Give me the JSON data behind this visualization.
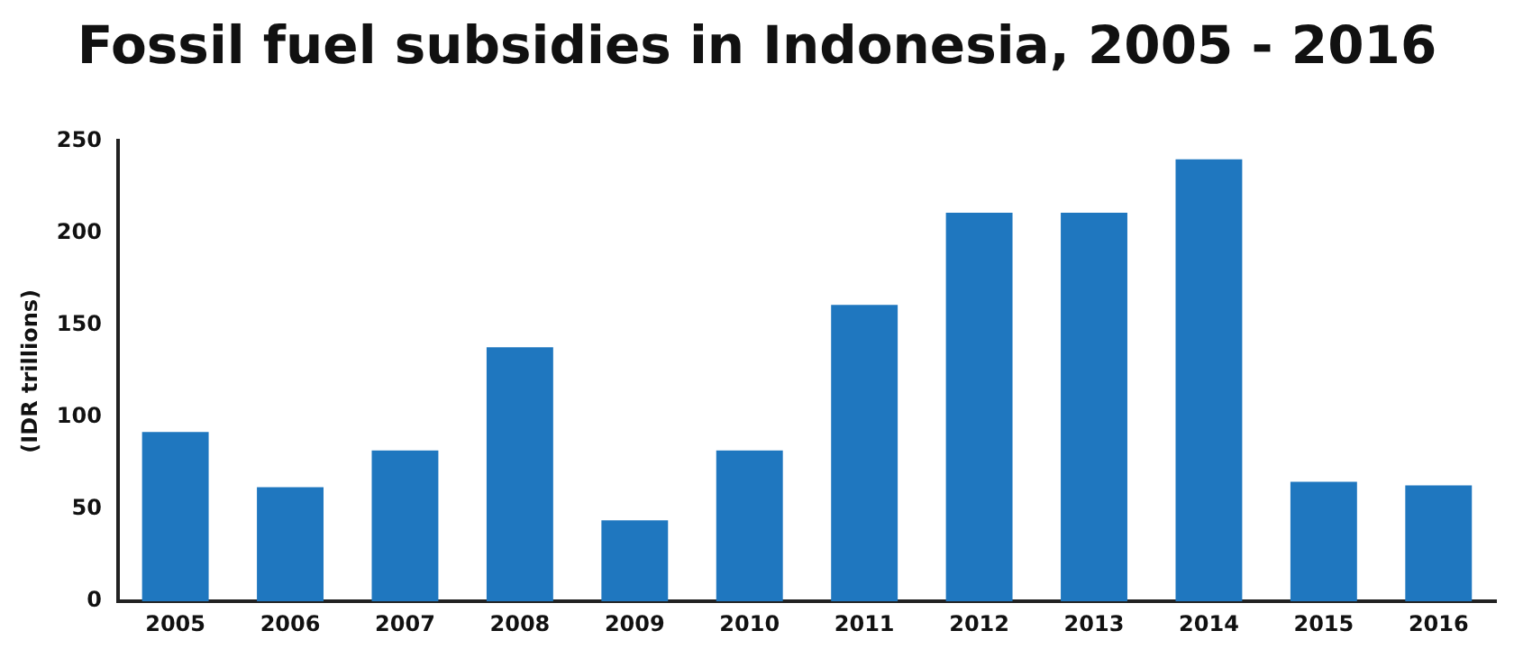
{
  "chart_data": {
    "type": "bar",
    "title": "Fossil fuel subsidies in Indonesia, 2005 - 2016",
    "ylabel": "(IDR trillions)",
    "categories": [
      "2005",
      "2006",
      "2007",
      "2008",
      "2009",
      "2010",
      "2011",
      "2012",
      "2013",
      "2014",
      "2015",
      "2016"
    ],
    "values": [
      92,
      62,
      82,
      138,
      44,
      82,
      161,
      211,
      211,
      240,
      65,
      63
    ],
    "color": "#1f77bf",
    "ylim": [
      0,
      250
    ],
    "yticks": [
      0,
      50,
      100,
      150,
      200,
      250
    ],
    "grid": false,
    "legend": false
  }
}
